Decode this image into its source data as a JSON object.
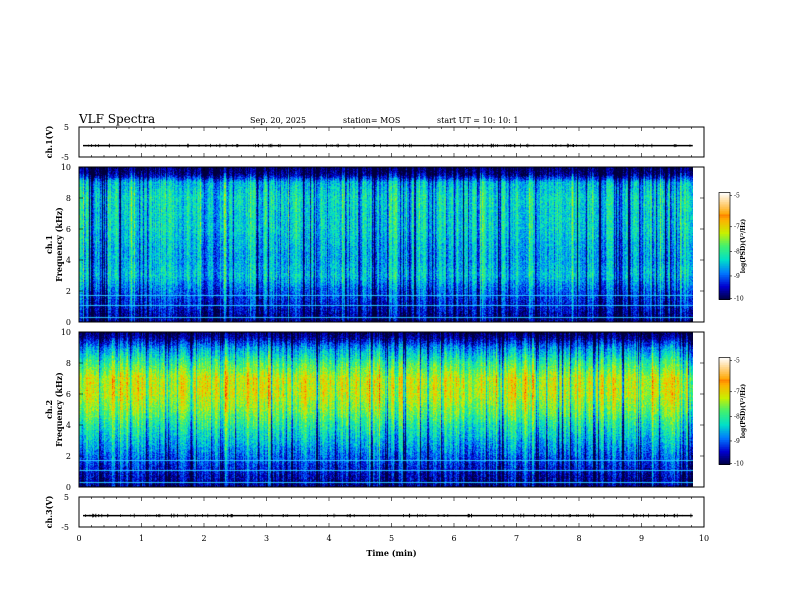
{
  "header": {
    "title": "VLF Spectra",
    "date": "Sep. 20, 2025",
    "station": "station= MOS",
    "start": "start  UT  =   10: 10: 1"
  },
  "colors": {
    "background": "#ffffff",
    "frame": "#000000",
    "colormap": [
      "#00003c",
      "#0000d0",
      "#0078ff",
      "#00e0c8",
      "#40f070",
      "#c8f000",
      "#ffb000",
      "#ff3000",
      "#d00000"
    ]
  },
  "chart_data": [
    {
      "type": "line",
      "panel": "ch1-waveform",
      "ylabel": "ch.1(V)",
      "ylim": [
        -5,
        5
      ],
      "yticks": [
        "5",
        "-5"
      ],
      "xlim": [
        0,
        10
      ],
      "series": [
        {
          "values": [
            -1.2,
            -1.2
          ]
        }
      ]
    },
    {
      "type": "heatmap",
      "panel": "ch1-spectrogram",
      "ylabel": "ch.1\nFrequency (kHz)",
      "ylim": [
        0,
        10
      ],
      "yticks": [
        "0",
        "2",
        "4",
        "6",
        "8",
        "10"
      ],
      "xlim": [
        0,
        9.82
      ],
      "data_end_min": 9.82,
      "colorbar": {
        "label": "log(PSD)(V²/Hz)",
        "range": [
          -10,
          -5
        ],
        "ticks": [
          "-5",
          "-7",
          "-8",
          "-9",
          "-10"
        ]
      },
      "profile_logpsd_by_freq_khz": [
        [
          0,
          -9.7
        ],
        [
          1,
          -9.2
        ],
        [
          2,
          -8.8
        ],
        [
          3,
          -8.2
        ],
        [
          4,
          -8.4
        ],
        [
          5,
          -8.3
        ],
        [
          6,
          -8.1
        ],
        [
          7,
          -8.1
        ],
        [
          8,
          -8.0
        ],
        [
          9,
          -8.3
        ],
        [
          9.5,
          -9.6
        ],
        [
          10,
          -9.9
        ]
      ]
    },
    {
      "type": "heatmap",
      "panel": "ch2-spectrogram",
      "ylabel": "ch.2\nFrequency (kHz)",
      "ylim": [
        0,
        10
      ],
      "yticks": [
        "0",
        "2",
        "4",
        "6",
        "8",
        "10"
      ],
      "xlim": [
        0,
        9.82
      ],
      "data_end_min": 9.82,
      "colorbar": {
        "label": "log(PSD)(V²/Hz)",
        "range": [
          -10,
          -5
        ],
        "ticks": [
          "-5",
          "-7",
          "-8",
          "-9",
          "-10"
        ]
      },
      "profile_logpsd_by_freq_khz": [
        [
          0,
          -9.7
        ],
        [
          1,
          -9.3
        ],
        [
          2,
          -8.8
        ],
        [
          3,
          -8.3
        ],
        [
          4,
          -7.8
        ],
        [
          5,
          -7.2
        ],
        [
          6,
          -6.8
        ],
        [
          7,
          -6.8
        ],
        [
          8,
          -7.6
        ],
        [
          9,
          -8.6
        ],
        [
          9.5,
          -9.4
        ],
        [
          10,
          -9.9
        ]
      ]
    },
    {
      "type": "line",
      "panel": "ch3-waveform",
      "ylabel": "ch.3(V)",
      "ylim": [
        -5,
        5
      ],
      "yticks": [
        "5",
        "-5"
      ],
      "xlim": [
        0,
        10
      ],
      "series": [
        {
          "values": [
            -1.2,
            -1.2
          ]
        }
      ]
    }
  ],
  "xaxis": {
    "label": "Time  (min)",
    "range": [
      0,
      10
    ],
    "ticks": [
      "0",
      "1",
      "2",
      "3",
      "4",
      "5",
      "6",
      "7",
      "8",
      "9",
      "10"
    ]
  }
}
